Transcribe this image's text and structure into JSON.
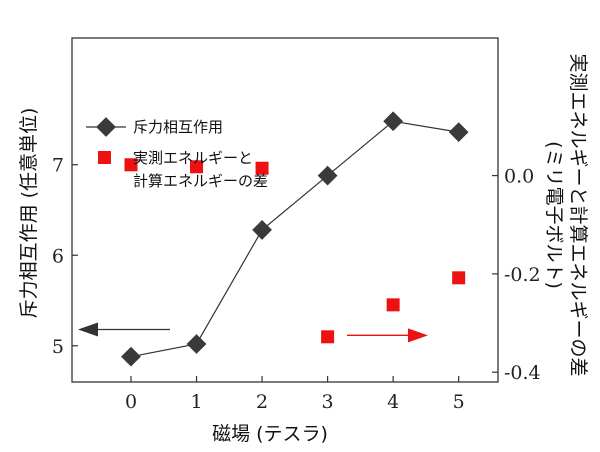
{
  "chart_data": {
    "type": "scatter",
    "x": [
      0,
      1,
      2,
      3,
      4,
      5
    ],
    "xticks": [
      "0",
      "1",
      "2",
      "3",
      "4",
      "5"
    ],
    "xlabel": "磁場 (テスラ)",
    "xlim": [
      -0.9,
      5.6
    ],
    "ylabel_left": "斥力相互作用 (任意単位)",
    "ylim_left": [
      4.6,
      8.4
    ],
    "yticks_left": [
      5,
      6,
      7
    ],
    "ylabel_right_line1": "実測エネルギーと計算エネルギーの差",
    "ylabel_right_line2": "(ミリ電子ボルト)",
    "ylim_right": [
      -0.42,
      0.28
    ],
    "yticks_right": [
      0.0,
      -0.2,
      -0.4
    ],
    "yticks_right_labels": [
      "0.0",
      "-0.2",
      "-0.4"
    ],
    "series": [
      {
        "name": "斥力相互作用",
        "axis": "left",
        "marker": "diamond",
        "line": true,
        "color": "#3a3a3a",
        "values": [
          4.88,
          5.02,
          6.28,
          6.88,
          7.48,
          7.36
        ]
      },
      {
        "name": "実測エネルギーと計算エネルギーの差",
        "legend_line1": "実測エネルギーと",
        "legend_line2": "計算エネルギーの差",
        "axis": "right",
        "marker": "square",
        "line": false,
        "color": "#ee1111",
        "x": [
          0,
          1,
          2,
          3,
          4,
          5
        ],
        "values": [
          0.022,
          0.018,
          0.015,
          -0.328,
          -0.263,
          -0.208
        ]
      }
    ],
    "annotations": [
      {
        "type": "arrow",
        "direction": "left",
        "color": "#333333",
        "meaning": "left axis"
      },
      {
        "type": "arrow",
        "direction": "right",
        "color": "#ee1111",
        "meaning": "right axis"
      }
    ],
    "grid": false,
    "legend_position": "top-left"
  }
}
